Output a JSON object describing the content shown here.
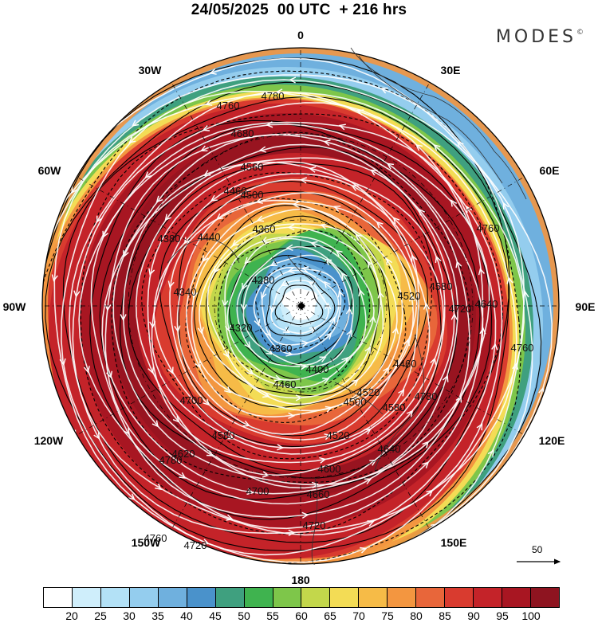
{
  "header": {
    "title": "24/05/2025  00 UTC  + 216 hrs",
    "brand": "MODES",
    "brand_mark": "©"
  },
  "map": {
    "projection": "polar stereographic (north pole)",
    "longitude_labels": [
      "0",
      "30E",
      "60E",
      "90E",
      "120E",
      "150E",
      "180",
      "150W",
      "120W",
      "90W",
      "60W",
      "30W"
    ],
    "contour_labels": [
      "4780",
      "4760",
      "4680",
      "4560",
      "4500",
      "4460",
      "4360",
      "4440",
      "4380",
      "4280",
      "4340",
      "4320",
      "4360",
      "4400",
      "4460",
      "4500",
      "4520",
      "4580",
      "4520",
      "4600",
      "4640",
      "4660",
      "4700",
      "4720",
      "4620",
      "4580",
      "4780",
      "4760",
      "4760",
      "4720",
      "4640",
      "4580",
      "4520",
      "4460",
      "4700",
      "4780",
      "4760",
      "4720"
    ],
    "reference_vector_label": "50",
    "colors": {
      "land_outline": "#333333",
      "contour": "#000000",
      "streamline": "#ffffff"
    }
  },
  "colorbar": {
    "tick_labels": [
      "20",
      "25",
      "30",
      "35",
      "40",
      "45",
      "50",
      "55",
      "60",
      "65",
      "70",
      "75",
      "80",
      "85",
      "90",
      "95",
      "100"
    ],
    "colors": [
      "#ffffff",
      "#cfeefb",
      "#b3e1f6",
      "#94cdee",
      "#6fb0de",
      "#4a92cb",
      "#3fa07f",
      "#3fb34f",
      "#7ec64a",
      "#c3d74b",
      "#f3dc55",
      "#f6bb47",
      "#f39640",
      "#e8663a",
      "#d93b2f",
      "#c42329",
      "#a81622",
      "#8e1420"
    ]
  }
}
